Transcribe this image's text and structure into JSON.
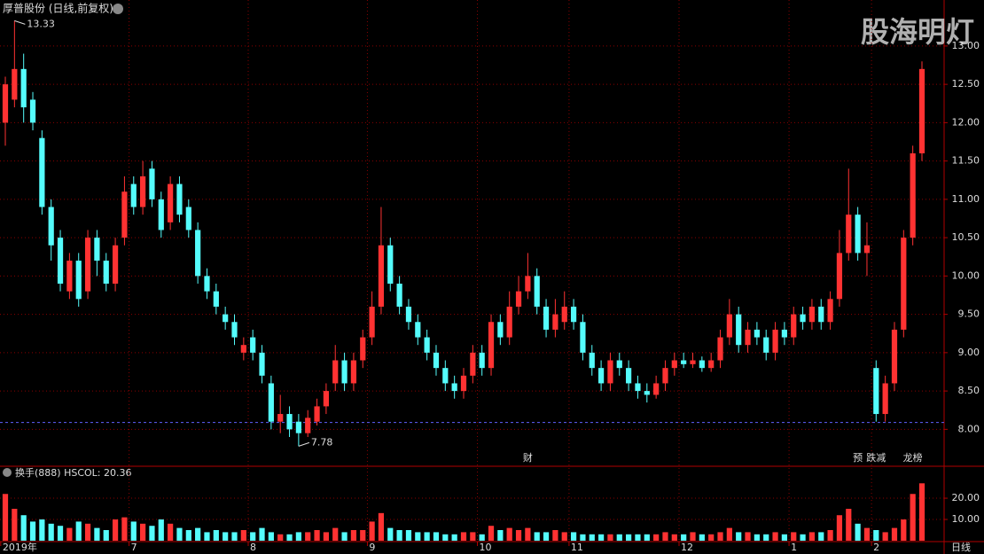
{
  "chart_data": {
    "type": "candlestick",
    "title": "厚普股份 (日线,前复权)",
    "watermark": "股海明灯",
    "period_label": "日线",
    "indicator_label": "换手(888)  HSCOL: 20.36",
    "up_color": "#ff3232",
    "down_color": "#54fcfc",
    "grid": true,
    "categories": [
      "2019年",
      null,
      null,
      null,
      null,
      null,
      null,
      null,
      null,
      null,
      null,
      null,
      null,
      null,
      "7",
      null,
      null,
      null,
      null,
      null,
      null,
      null,
      null,
      null,
      null,
      null,
      null,
      "8",
      null,
      null,
      null,
      null,
      null,
      null,
      null,
      null,
      null,
      null,
      null,
      null,
      "9",
      null,
      null,
      null,
      null,
      null,
      null,
      null,
      null,
      null,
      null,
      null,
      "10",
      null,
      null,
      null,
      null,
      null,
      null,
      null,
      null,
      null,
      "11",
      null,
      null,
      null,
      null,
      null,
      null,
      null,
      null,
      null,
      null,
      null,
      "12",
      null,
      null,
      null,
      null,
      null,
      null,
      null,
      null,
      null,
      null,
      null,
      "1",
      null,
      null,
      null,
      null,
      null,
      null,
      null,
      null,
      "2",
      null,
      null,
      null,
      null,
      null
    ],
    "open": [
      12.0,
      12.3,
      12.7,
      12.3,
      11.8,
      10.9,
      10.5,
      9.8,
      10.2,
      9.8,
      10.5,
      10.2,
      9.9,
      10.5,
      11.2,
      10.9,
      11.4,
      11.0,
      10.7,
      11.2,
      10.9,
      10.6,
      10.0,
      9.8,
      9.5,
      9.4,
      9.0,
      9.2,
      9.0,
      8.6,
      8.1,
      8.2,
      8.1,
      7.95,
      8.1,
      8.3,
      8.6,
      8.9,
      8.6,
      8.9,
      9.2,
      9.6,
      10.4,
      9.9,
      9.6,
      9.4,
      9.2,
      9.0,
      8.8,
      8.6,
      8.5,
      8.7,
      9.0,
      8.8,
      9.4,
      9.2,
      9.6,
      9.8,
      10.0,
      9.6,
      9.3,
      9.4,
      9.6,
      9.4,
      9.0,
      8.8,
      8.6,
      8.9,
      8.8,
      8.6,
      8.5,
      8.45,
      8.6,
      8.8,
      8.9,
      8.85,
      8.9,
      8.8,
      8.9,
      9.2,
      9.5,
      9.1,
      9.3,
      9.2,
      9.0,
      9.3,
      9.2,
      9.5,
      9.4,
      9.6,
      9.4,
      9.7,
      10.3,
      10.8,
      10.3,
      8.8,
      8.2,
      8.6,
      9.3,
      10.5,
      11.6
    ],
    "high": [
      12.6,
      13.33,
      12.9,
      12.4,
      11.9,
      11.0,
      10.6,
      10.3,
      10.3,
      10.6,
      10.6,
      10.3,
      10.5,
      11.3,
      11.3,
      11.5,
      11.5,
      11.1,
      11.3,
      11.3,
      11.0,
      10.7,
      10.1,
      9.9,
      9.6,
      9.5,
      9.2,
      9.3,
      9.1,
      8.7,
      8.45,
      8.3,
      8.2,
      8.25,
      8.4,
      8.6,
      9.1,
      9.0,
      9.0,
      9.3,
      9.8,
      10.9,
      10.5,
      10.0,
      9.7,
      9.5,
      9.3,
      9.1,
      8.9,
      8.7,
      8.8,
      9.1,
      9.1,
      9.5,
      9.5,
      9.8,
      10.0,
      10.3,
      10.1,
      9.7,
      9.7,
      9.8,
      9.7,
      9.5,
      9.1,
      8.9,
      9.0,
      9.0,
      8.9,
      8.7,
      8.6,
      8.7,
      8.9,
      9.0,
      9.0,
      9.0,
      8.95,
      9.0,
      9.3,
      9.7,
      9.6,
      9.4,
      9.4,
      9.3,
      9.4,
      9.4,
      9.6,
      9.6,
      9.7,
      9.7,
      9.8,
      10.6,
      11.4,
      10.9,
      10.7,
      8.9,
      8.7,
      9.4,
      10.6,
      11.7,
      12.8
    ],
    "low": [
      11.7,
      12.2,
      12.0,
      11.9,
      10.8,
      10.2,
      9.8,
      9.7,
      9.6,
      9.7,
      10.0,
      9.8,
      9.8,
      10.4,
      10.8,
      10.8,
      10.9,
      10.5,
      10.6,
      10.7,
      10.5,
      9.9,
      9.7,
      9.5,
      9.3,
      9.1,
      8.9,
      8.9,
      8.6,
      8.0,
      7.95,
      7.9,
      7.78,
      7.9,
      8.05,
      8.2,
      8.5,
      8.5,
      8.5,
      8.8,
      9.1,
      9.5,
      9.8,
      9.5,
      9.3,
      9.1,
      8.9,
      8.7,
      8.5,
      8.4,
      8.4,
      8.6,
      8.7,
      8.7,
      9.1,
      9.1,
      9.5,
      9.7,
      9.5,
      9.2,
      9.2,
      9.3,
      9.3,
      8.9,
      8.7,
      8.5,
      8.5,
      8.7,
      8.5,
      8.4,
      8.35,
      8.4,
      8.5,
      8.7,
      8.8,
      8.8,
      8.75,
      8.75,
      8.8,
      9.1,
      9.0,
      9.0,
      9.1,
      8.9,
      8.9,
      9.1,
      9.1,
      9.3,
      9.3,
      9.3,
      9.3,
      9.6,
      10.2,
      10.2,
      10.0,
      8.1,
      8.1,
      8.5,
      9.2,
      10.4,
      11.5
    ],
    "close": [
      12.5,
      12.7,
      12.2,
      12.0,
      10.9,
      10.4,
      9.9,
      10.2,
      9.7,
      10.5,
      10.2,
      9.9,
      10.4,
      11.1,
      10.9,
      11.3,
      11.0,
      10.6,
      11.2,
      10.8,
      10.6,
      10.0,
      9.8,
      9.6,
      9.4,
      9.2,
      9.1,
      9.0,
      8.7,
      8.1,
      8.2,
      8.0,
      7.95,
      8.15,
      8.3,
      8.5,
      8.9,
      8.6,
      8.9,
      9.2,
      9.6,
      10.4,
      9.9,
      9.6,
      9.4,
      9.2,
      9.0,
      8.8,
      8.6,
      8.5,
      8.7,
      9.0,
      8.8,
      9.4,
      9.2,
      9.6,
      9.8,
      10.0,
      9.6,
      9.3,
      9.5,
      9.6,
      9.4,
      9.0,
      8.8,
      8.6,
      8.9,
      8.8,
      8.6,
      8.5,
      8.45,
      8.6,
      8.8,
      8.9,
      8.85,
      8.9,
      8.8,
      8.9,
      9.2,
      9.5,
      9.1,
      9.3,
      9.2,
      9.0,
      9.3,
      9.2,
      9.5,
      9.4,
      9.6,
      9.4,
      9.7,
      10.3,
      10.8,
      10.3,
      10.4,
      8.2,
      8.6,
      9.3,
      10.5,
      11.6,
      12.7
    ],
    "volume": [
      22,
      15,
      12,
      9,
      10,
      8,
      7,
      6,
      9,
      8,
      6,
      5,
      10,
      11,
      9,
      8,
      7,
      10,
      8,
      6,
      5,
      6,
      4,
      5,
      4,
      4,
      5,
      4,
      6,
      4,
      3,
      3,
      4,
      4,
      5,
      4,
      6,
      4,
      5,
      5,
      9,
      13,
      6,
      5,
      5,
      4,
      4,
      4,
      3,
      3,
      4,
      4,
      3,
      7,
      5,
      6,
      5,
      6,
      4,
      4,
      5,
      4,
      4,
      3,
      3,
      3,
      3,
      3,
      3,
      3,
      3,
      3,
      4,
      3,
      3,
      4,
      3,
      3,
      4,
      6,
      4,
      4,
      3,
      3,
      4,
      3,
      4,
      3,
      4,
      4,
      5,
      12,
      15,
      8,
      6,
      5,
      4,
      6,
      10,
      22,
      27
    ],
    "ylim": [
      7.53,
      13.6
    ],
    "yticks": [
      {
        "value": 8,
        "label": "8.00"
      },
      {
        "value": 8.5,
        "label": "8.50"
      },
      {
        "value": 9,
        "label": "9.00"
      },
      {
        "value": 9.5,
        "label": "9.50"
      },
      {
        "value": 10,
        "label": "10.00"
      },
      {
        "value": 10.5,
        "label": "10.50"
      },
      {
        "value": 11,
        "label": "11.00"
      },
      {
        "value": 11.5,
        "label": "11.50"
      },
      {
        "value": 12,
        "label": "12.00"
      },
      {
        "value": 12.5,
        "label": "12.50"
      },
      {
        "value": 13,
        "label": "13.00"
      }
    ],
    "volume_ylim": [
      0,
      29.2
    ],
    "volume_yticks": [
      {
        "value": 10,
        "label": "10.00"
      },
      {
        "value": 20,
        "label": "20.00"
      }
    ],
    "ref_line": 8.09,
    "events": [
      {
        "at": 57,
        "label": "财",
        "color": "#5b9bff"
      },
      {
        "at": 93,
        "label": "预",
        "color": "#ff9a3c"
      },
      {
        "at": 95,
        "label": "跌减",
        "color": "#5cd65c"
      },
      {
        "at": 99,
        "label": "龙榜",
        "color": "#ff6ad5"
      }
    ]
  }
}
